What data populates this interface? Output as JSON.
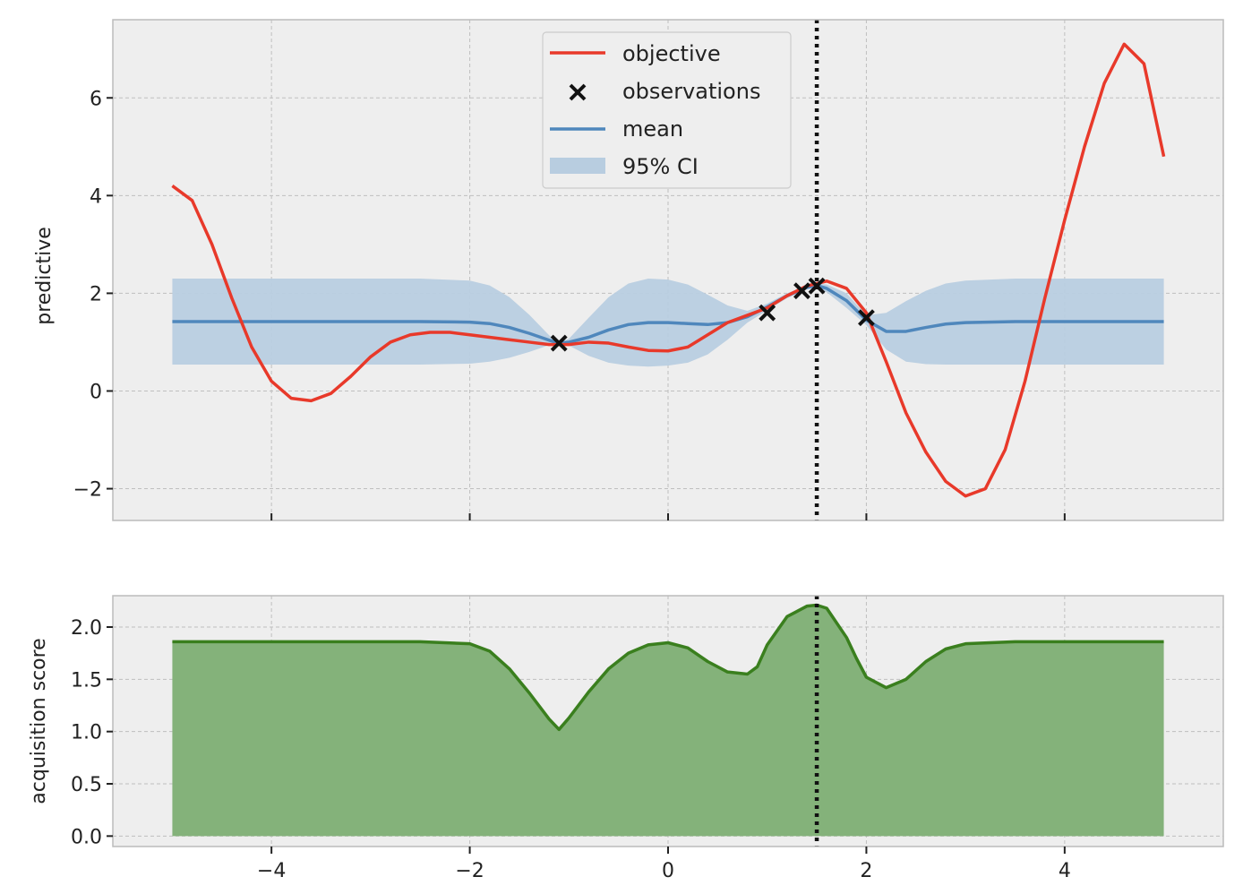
{
  "colors": {
    "objective": "#e8392a",
    "mean": "#4f87bc",
    "ci_fill": "#b8cde0",
    "acquisition_line": "#3a7f1e",
    "acquisition_fill": "#84b27a",
    "observation": "#111111",
    "marker_line": "#111111"
  },
  "chart_data": [
    {
      "type": "line",
      "title": "",
      "xlabel": "",
      "ylabel": "predictive",
      "xlim": [
        -5.6,
        5.6
      ],
      "ylim": [
        -2.65,
        7.6
      ],
      "grid": true,
      "legend_position": "top-center",
      "yticks": [
        -2,
        0,
        2,
        4,
        6
      ],
      "ytick_labels": [
        "−2",
        "0",
        "2",
        "4",
        "6"
      ],
      "xticks": [
        -4,
        -2,
        0,
        2,
        4
      ],
      "series": [
        {
          "name": "objective",
          "kind": "line",
          "x": [
            -5.0,
            -4.8,
            -4.6,
            -4.4,
            -4.2,
            -4.0,
            -3.8,
            -3.6,
            -3.4,
            -3.2,
            -3.0,
            -2.8,
            -2.6,
            -2.4,
            -2.2,
            -2.0,
            -1.8,
            -1.6,
            -1.4,
            -1.2,
            -1.0,
            -0.8,
            -0.6,
            -0.4,
            -0.2,
            0.0,
            0.2,
            0.4,
            0.6,
            0.8,
            1.0,
            1.2,
            1.4,
            1.6,
            1.8,
            2.0,
            2.2,
            2.4,
            2.6,
            2.8,
            3.0,
            3.2,
            3.4,
            3.6,
            3.8,
            4.0,
            4.2,
            4.4,
            4.6,
            4.8,
            5.0
          ],
          "y": [
            4.2,
            3.9,
            3.0,
            1.9,
            0.9,
            0.2,
            -0.15,
            -0.2,
            -0.05,
            0.3,
            0.7,
            1.0,
            1.15,
            1.2,
            1.2,
            1.15,
            1.1,
            1.05,
            1.0,
            0.95,
            0.95,
            1.0,
            0.98,
            0.9,
            0.83,
            0.82,
            0.9,
            1.15,
            1.4,
            1.55,
            1.7,
            1.95,
            2.15,
            2.25,
            2.1,
            1.6,
            0.6,
            -0.45,
            -1.25,
            -1.85,
            -2.15,
            -2.0,
            -1.2,
            0.2,
            1.9,
            3.5,
            5.0,
            6.3,
            7.1,
            6.7,
            4.8
          ]
        },
        {
          "name": "observations",
          "kind": "scatter",
          "x": [
            -1.1,
            1.0,
            1.35,
            1.5,
            2.0
          ],
          "y": [
            0.98,
            1.6,
            2.05,
            2.15,
            1.5
          ]
        },
        {
          "name": "mean",
          "kind": "line",
          "x": [
            -5.0,
            -4.0,
            -3.0,
            -2.5,
            -2.0,
            -1.8,
            -1.6,
            -1.4,
            -1.2,
            -1.1,
            -1.0,
            -0.8,
            -0.6,
            -0.4,
            -0.2,
            0.0,
            0.2,
            0.4,
            0.6,
            0.8,
            1.0,
            1.2,
            1.4,
            1.5,
            1.6,
            1.8,
            2.0,
            2.2,
            2.4,
            2.6,
            2.8,
            3.0,
            3.5,
            4.0,
            5.0
          ],
          "y": [
            1.42,
            1.42,
            1.42,
            1.42,
            1.41,
            1.38,
            1.3,
            1.18,
            1.04,
            0.98,
            1.0,
            1.1,
            1.25,
            1.36,
            1.4,
            1.4,
            1.38,
            1.36,
            1.4,
            1.52,
            1.72,
            1.95,
            2.12,
            2.16,
            2.1,
            1.85,
            1.45,
            1.22,
            1.22,
            1.3,
            1.37,
            1.4,
            1.42,
            1.42,
            1.42
          ]
        },
        {
          "name": "95% CI",
          "kind": "band",
          "x": [
            -5.0,
            -4.0,
            -3.0,
            -2.5,
            -2.0,
            -1.8,
            -1.6,
            -1.4,
            -1.2,
            -1.1,
            -1.0,
            -0.8,
            -0.6,
            -0.4,
            -0.2,
            0.0,
            0.2,
            0.4,
            0.6,
            0.8,
            1.0,
            1.2,
            1.4,
            1.5,
            1.6,
            1.8,
            2.0,
            2.2,
            2.4,
            2.6,
            2.8,
            3.0,
            3.5,
            4.0,
            5.0
          ],
          "lower": [
            0.54,
            0.54,
            0.54,
            0.54,
            0.56,
            0.6,
            0.68,
            0.8,
            0.94,
            0.98,
            0.93,
            0.72,
            0.58,
            0.52,
            0.5,
            0.52,
            0.58,
            0.75,
            1.05,
            1.4,
            1.65,
            1.9,
            2.08,
            2.12,
            2.02,
            1.7,
            1.35,
            0.85,
            0.6,
            0.55,
            0.54,
            0.54,
            0.54,
            0.54,
            0.54
          ],
          "upper": [
            2.3,
            2.3,
            2.3,
            2.3,
            2.26,
            2.16,
            1.92,
            1.56,
            1.14,
            0.98,
            1.07,
            1.5,
            1.92,
            2.2,
            2.3,
            2.28,
            2.18,
            1.97,
            1.75,
            1.64,
            1.79,
            2.0,
            2.16,
            2.2,
            2.18,
            2.0,
            1.55,
            1.6,
            1.84,
            2.05,
            2.2,
            2.26,
            2.3,
            2.3,
            2.3
          ]
        }
      ],
      "legend": [
        "objective",
        "observations",
        "mean",
        "95% CI"
      ],
      "vline_x": 1.5
    },
    {
      "type": "area",
      "title": "",
      "xlabel": "",
      "ylabel": "acquisition score",
      "xlim": [
        -5.6,
        5.6
      ],
      "ylim": [
        -0.1,
        2.3
      ],
      "grid": true,
      "yticks": [
        0.0,
        0.5,
        1.0,
        1.5,
        2.0
      ],
      "ytick_labels": [
        "0.0",
        "0.5",
        "1.0",
        "1.5",
        "2.0"
      ],
      "xticks": [
        -4,
        -2,
        0,
        2,
        4
      ],
      "xtick_labels": [
        "−4",
        "−2",
        "0",
        "2",
        "4"
      ],
      "series": [
        {
          "name": "acquisition score",
          "kind": "area",
          "x": [
            -5.0,
            -4.0,
            -3.0,
            -2.5,
            -2.0,
            -1.8,
            -1.6,
            -1.4,
            -1.2,
            -1.1,
            -1.0,
            -0.8,
            -0.6,
            -0.4,
            -0.2,
            0.0,
            0.2,
            0.4,
            0.6,
            0.8,
            0.9,
            1.0,
            1.2,
            1.4,
            1.5,
            1.6,
            1.8,
            1.9,
            2.0,
            2.2,
            2.4,
            2.6,
            2.8,
            3.0,
            3.5,
            4.0,
            5.0
          ],
          "y": [
            1.86,
            1.86,
            1.86,
            1.86,
            1.84,
            1.77,
            1.6,
            1.37,
            1.12,
            1.02,
            1.13,
            1.38,
            1.6,
            1.75,
            1.83,
            1.85,
            1.8,
            1.67,
            1.57,
            1.55,
            1.62,
            1.83,
            2.1,
            2.2,
            2.21,
            2.18,
            1.9,
            1.7,
            1.52,
            1.42,
            1.5,
            1.67,
            1.79,
            1.84,
            1.86,
            1.86,
            1.86
          ]
        }
      ],
      "vline_x": 1.5
    }
  ]
}
